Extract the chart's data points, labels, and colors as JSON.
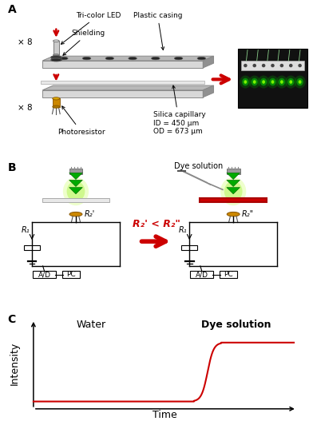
{
  "panel_A_label": "A",
  "panel_B_label": "B",
  "panel_C_label": "C",
  "panel_C_title_water": "Water",
  "panel_C_title_dye": "Dye solution",
  "panel_C_xlabel": "Time",
  "panel_C_ylabel": "Intensity",
  "annotations_A": {
    "x8_top": "× 8",
    "tri_led": "Tri-color LED",
    "shielding": "Shielding",
    "plastic_casing": "Plastic casing",
    "silica_cap": "Silica capillary\nID = 450 μm\nOD = 673 μm",
    "photoresistor": "Photoresistor",
    "x8_bottom": "× 8"
  },
  "annotations_B": {
    "dye_solution": "Dye solution",
    "r2_prime_lt_r2_dbl": "R₂' < R₂\""
  },
  "colors": {
    "red_arrow": "#cc0000",
    "green_tri": "#00aa00",
    "green_dark": "#006600",
    "green_glow": "#aaff00",
    "gold": "#cc8800",
    "gold_dark": "#885500",
    "plate_gray": "#b8b8b8",
    "plate_dark": "#888888",
    "plate_light": "#d8d8d8",
    "plate_side": "#909090",
    "dark_gray": "#404040",
    "light_gray": "#d0d0d0",
    "red_bar": "#cc0000",
    "black": "#000000",
    "white": "#ffffff",
    "photo_bg": "#111111"
  },
  "figure_bg": "#ffffff"
}
